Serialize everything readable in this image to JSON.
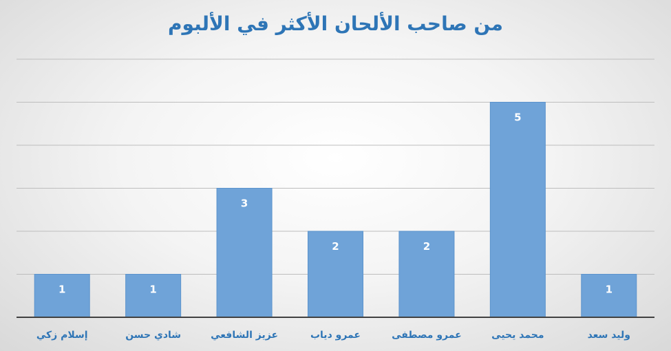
{
  "chart_data": {
    "type": "bar",
    "title": "من صاحب الألحان الأكثر في الألبوم",
    "categories": [
      "إسلام زكي",
      "شادي حسن",
      "عزيز الشافعي",
      "عمرو دياب",
      "عمرو مصطفى",
      "محمد يحيى",
      "وليد سعد"
    ],
    "values": [
      1,
      1,
      3,
      2,
      2,
      5,
      1
    ],
    "ylim": [
      0,
      6
    ],
    "grid": true,
    "legend": "none",
    "colors": {
      "bar": "#6fa3d8",
      "bar_edge": "#5b93cc",
      "text": "#2e75b6",
      "grid": "#bdbdbd",
      "axis": "#404040"
    }
  }
}
